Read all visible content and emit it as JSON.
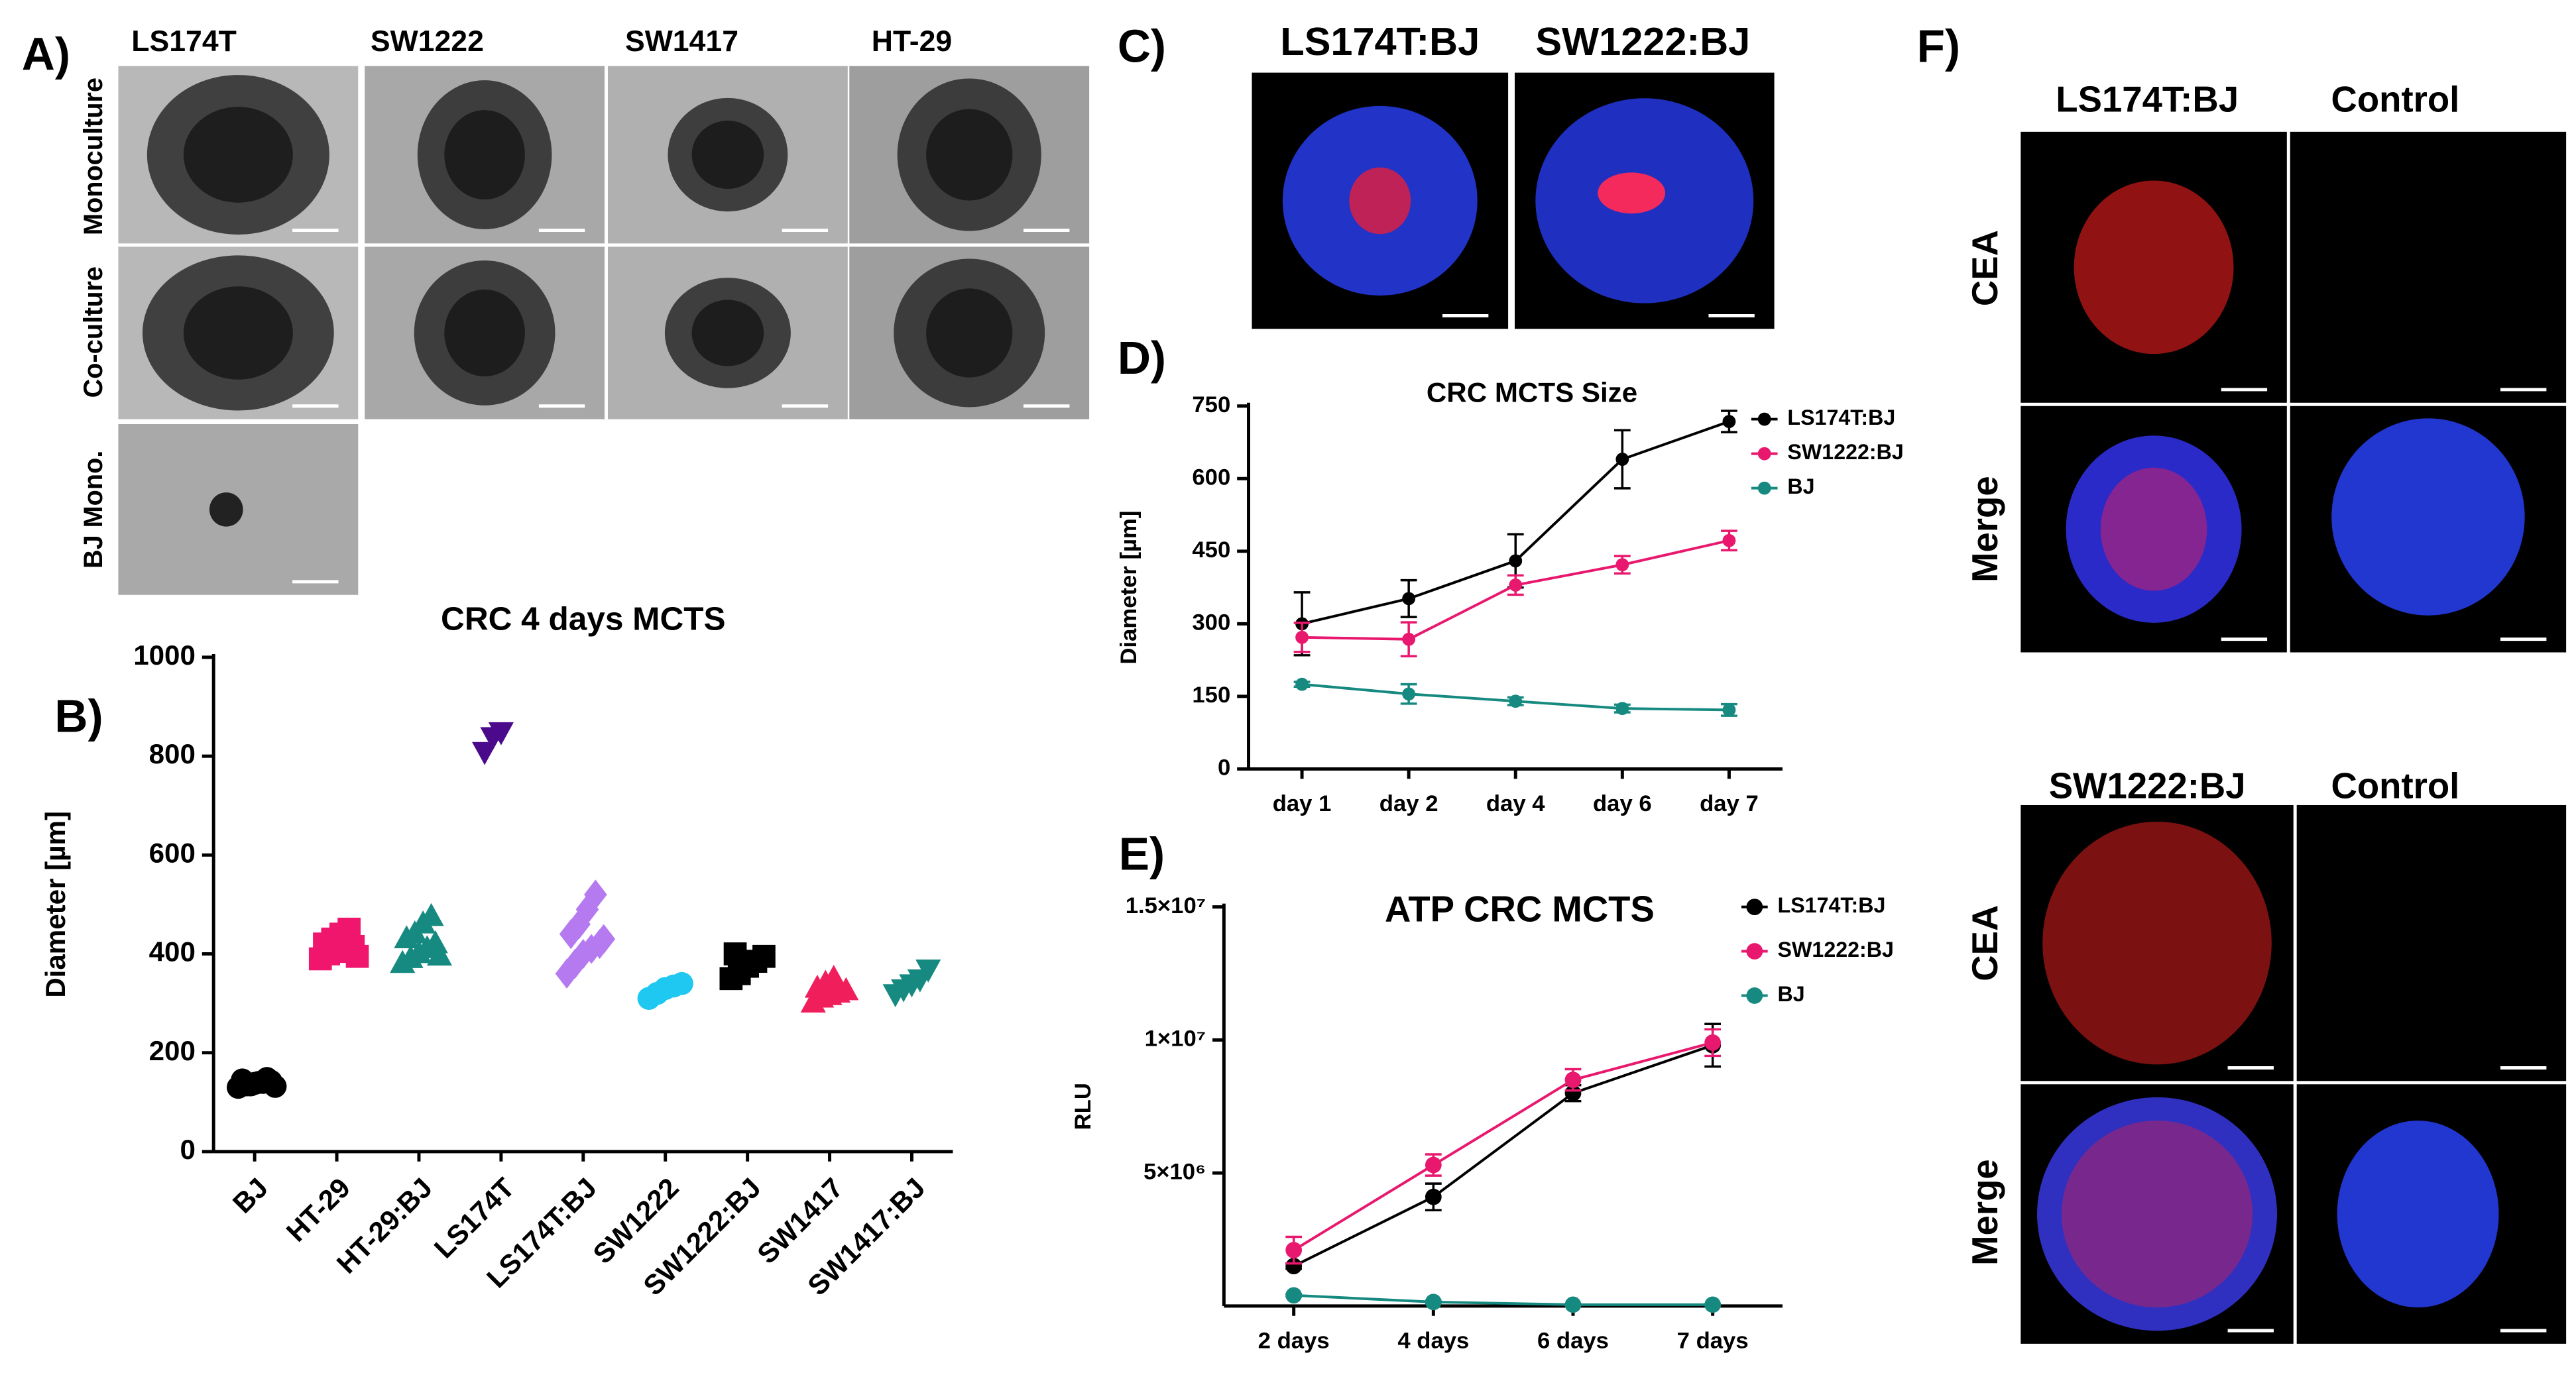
{
  "panels": {
    "A": {
      "label": "A)",
      "columns": [
        "LS174T",
        "SW1222",
        "SW1417",
        "HT-29"
      ],
      "rows": [
        "Monoculture",
        "Co-culture",
        "BJ Mono."
      ]
    },
    "B": {
      "label": "B)"
    },
    "C": {
      "label": "C)",
      "columns": [
        "LS174T:BJ",
        "SW1222:BJ"
      ]
    },
    "D": {
      "label": "D)"
    },
    "E": {
      "label": "E)"
    },
    "F": {
      "label": "F)",
      "groups": [
        {
          "columns": [
            "LS174T:BJ",
            "Control"
          ],
          "rows": [
            "CEA",
            "Merge"
          ]
        },
        {
          "columns": [
            "SW1222:BJ",
            "Control"
          ],
          "rows": [
            "CEA",
            "Merge"
          ]
        }
      ]
    }
  },
  "chart_data": [
    {
      "type": "strip",
      "title": "CRC 4 days MCTS",
      "y_label": "Diameter [µm]",
      "categories": [
        "BJ",
        "HT-29",
        "HT-29:BJ",
        "LS174T",
        "LS174T:BJ",
        "SW1222",
        "SW1222:BJ",
        "SW1417",
        "SW1417:BJ"
      ],
      "values": [
        [
          130,
          135,
          138,
          140,
          142,
          145,
          135,
          140,
          148,
          132
        ],
        [
          390,
          400,
          405,
          410,
          415,
          420,
          430,
          440,
          450,
          395
        ],
        [
          380,
          390,
          400,
          410,
          420,
          430,
          440,
          460,
          475,
          395
        ],
        [
          810,
          840,
          850
        ],
        [
          360,
          380,
          400,
          410,
          420,
          440,
          460,
          490,
          520,
          430
        ],
        [
          310,
          320,
          330,
          335,
          340
        ],
        [
          350,
          360,
          375,
          385,
          395,
          400
        ],
        [
          300,
          310,
          315,
          320,
          325,
          330,
          340,
          350
        ],
        [
          320,
          330,
          340,
          350,
          370
        ]
      ],
      "colors": [
        "#000000",
        "#f0166e",
        "#168a80",
        "#4b0a8c",
        "#b57af0",
        "#1ec8f0",
        "#000000",
        "#f01e5a",
        "#168a80"
      ],
      "markers": [
        "circle",
        "square",
        "triangle",
        "triangle-down",
        "diamond",
        "circle",
        "square",
        "triangle",
        "triangle-down"
      ],
      "ylim": [
        0,
        1000
      ],
      "yticks": [
        0,
        200,
        400,
        600,
        800,
        1000
      ]
    },
    {
      "type": "line",
      "title": "CRC MCTS Size",
      "y_label": "Diameter [µm]",
      "categories": [
        "day 1",
        "day 2",
        "day 4",
        "day 6",
        "day 7"
      ],
      "series": [
        {
          "name": "LS174T:BJ",
          "color": "#000000",
          "values": [
            300,
            352,
            430,
            640,
            718
          ],
          "errors": [
            65,
            38,
            55,
            60,
            22
          ]
        },
        {
          "name": "SW1222:BJ",
          "color": "#e8186e",
          "values": [
            272,
            268,
            380,
            422,
            472
          ],
          "errors": [
            30,
            35,
            20,
            18,
            20
          ]
        },
        {
          "name": "BJ",
          "color": "#168a80",
          "values": [
            175,
            155,
            140,
            125,
            122
          ],
          "errors": [
            5,
            20,
            8,
            8,
            12
          ]
        }
      ],
      "ylim": [
        0,
        750
      ],
      "yticks": [
        0,
        150,
        300,
        450,
        600,
        750
      ],
      "legend": "upper right"
    },
    {
      "type": "line",
      "title": "ATP CRC MCTS",
      "y_label": "RLU",
      "categories": [
        "2 days",
        "4 days",
        "6 days",
        "7 days"
      ],
      "series": [
        {
          "name": "LS174T:BJ",
          "color": "#000000",
          "values": [
            1500000,
            4100000,
            8000000,
            9800000
          ],
          "errors": [
            100000,
            500000,
            300000,
            800000
          ]
        },
        {
          "name": "SW1222:BJ",
          "color": "#e8186e",
          "values": [
            2100000,
            5300000,
            8500000,
            9900000
          ],
          "errors": [
            500000,
            400000,
            400000,
            500000
          ]
        },
        {
          "name": "BJ",
          "color": "#168a80",
          "values": [
            400000,
            150000,
            50000,
            50000
          ],
          "errors": [
            50000,
            50000,
            20000,
            20000
          ]
        }
      ],
      "ylim": [
        0,
        15000000
      ],
      "yticks": [
        {
          "value": 5000000,
          "label": "5×10⁶"
        },
        {
          "value": 10000000,
          "label": "1×10⁷"
        },
        {
          "value": 15000000,
          "label": "1.5×10⁷"
        }
      ],
      "legend": "upper right"
    }
  ]
}
